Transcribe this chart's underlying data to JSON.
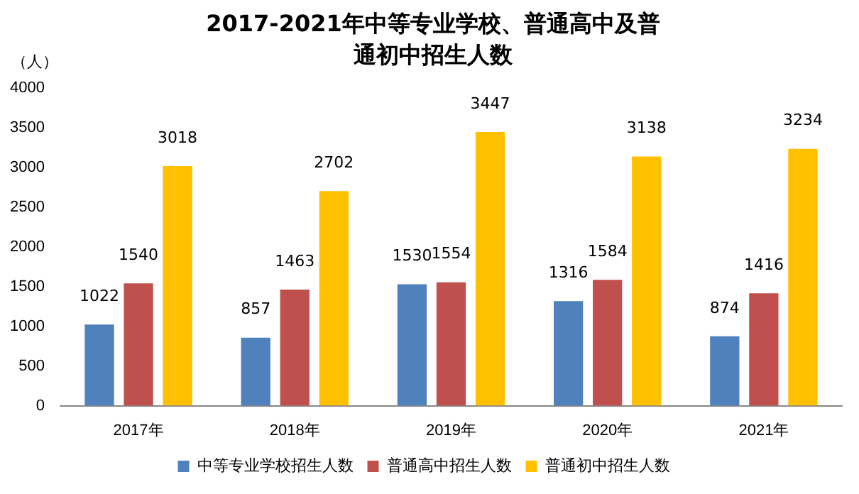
{
  "chart_data": {
    "type": "bar",
    "title": "2017-2021年中等专业学校、普通高中及普通初中招生人数",
    "ylabel": "（人）",
    "categories": [
      "2017年",
      "2018年",
      "2019年",
      "2020年",
      "2021年"
    ],
    "series": [
      {
        "name": "中等专业学校招生人数",
        "color": "#4f81bd",
        "values": [
          1022,
          857,
          1530,
          1316,
          874
        ]
      },
      {
        "name": "普通高中招生人数",
        "color": "#c0504d",
        "values": [
          1540,
          1463,
          1554,
          1584,
          1416
        ]
      },
      {
        "name": "普通初中招生人数",
        "color": "#ffc000",
        "values": [
          3018,
          2702,
          3447,
          3138,
          3234
        ]
      }
    ],
    "ylim": [
      0,
      4000
    ],
    "yticks": [
      0,
      500,
      1000,
      1500,
      2000,
      2500,
      3000,
      3500,
      4000
    ],
    "grid": false,
    "legend": "bottom",
    "data_labels": true
  }
}
